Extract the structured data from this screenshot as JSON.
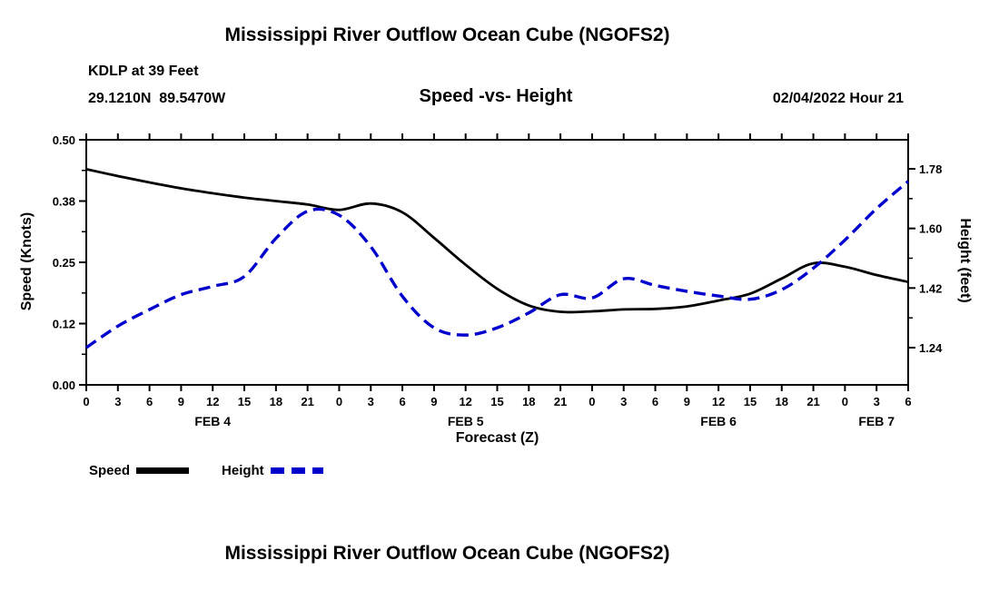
{
  "page": {
    "top_title": "Mississippi River Outflow Ocean Cube (NGOFS2)",
    "bottom_title": "Mississippi River Outflow Ocean Cube (NGOFS2)"
  },
  "header": {
    "station_line1": "KDLP at 39 Feet",
    "station_line2": "29.1210N  89.5470W",
    "subtitle": "Speed -vs- Height",
    "datetime": "02/04/2022 Hour 21"
  },
  "chart_data": {
    "type": "line",
    "title": "Speed -vs- Height",
    "xlabel": "Forecast (Z)",
    "grid": false,
    "legend_position": "bottom-left",
    "x_range": [
      0,
      78
    ],
    "x_hours": [
      0,
      3,
      6,
      9,
      12,
      15,
      18,
      21,
      24,
      27,
      30,
      33,
      36,
      39,
      42,
      45,
      48,
      51,
      54,
      57,
      60,
      63,
      66,
      69,
      72,
      75,
      78
    ],
    "x_tick_labels": [
      "0",
      "3",
      "6",
      "9",
      "12",
      "15",
      "18",
      "21",
      "0",
      "3",
      "6",
      "9",
      "12",
      "15",
      "18",
      "21",
      "0",
      "3",
      "6",
      "9",
      "12",
      "15",
      "18",
      "21",
      "0",
      "3",
      "6"
    ],
    "day_labels": [
      {
        "label": "FEB 4",
        "hour": 12
      },
      {
        "label": "FEB 5",
        "hour": 36
      },
      {
        "label": "FEB 6",
        "hour": 60
      },
      {
        "label": "FEB 7",
        "hour": 75
      }
    ],
    "left_axis": {
      "label": "Speed (Knots)",
      "min": 0.0,
      "max": 0.5,
      "tick_values": [
        0,
        0.125,
        0.25,
        0.375,
        0.5
      ],
      "tick_labels": [
        "0.00",
        "0.12",
        "0.25",
        "0.38",
        "0.50"
      ]
    },
    "right_axis": {
      "label": "Height (feet)",
      "min": 1.1276,
      "max": 1.8677,
      "tick_values": [
        1.24,
        1.42,
        1.6,
        1.78
      ],
      "tick_labels": [
        "1.24",
        "1.42",
        "1.60",
        "1.78"
      ]
    },
    "series": [
      {
        "name": "Speed",
        "axis": "left",
        "color": "#000000",
        "dash": "solid",
        "width": 2.8,
        "values": [
          0.44,
          0.426,
          0.413,
          0.401,
          0.391,
          0.382,
          0.375,
          0.368,
          0.357,
          0.37,
          0.352,
          0.3,
          0.245,
          0.196,
          0.162,
          0.149,
          0.15,
          0.154,
          0.155,
          0.16,
          0.172,
          0.186,
          0.217,
          0.248,
          0.241,
          0.224,
          0.21
        ]
      },
      {
        "name": "Height",
        "axis": "right",
        "color": "#0000cc",
        "dash": "dashed",
        "width": 3.4,
        "values": [
          1.24,
          1.305,
          1.355,
          1.4,
          1.425,
          1.455,
          1.57,
          1.652,
          1.64,
          1.545,
          1.395,
          1.3,
          1.278,
          1.3,
          1.345,
          1.4,
          1.39,
          1.448,
          1.428,
          1.41,
          1.396,
          1.386,
          1.415,
          1.48,
          1.565,
          1.66,
          1.742
        ]
      }
    ]
  }
}
